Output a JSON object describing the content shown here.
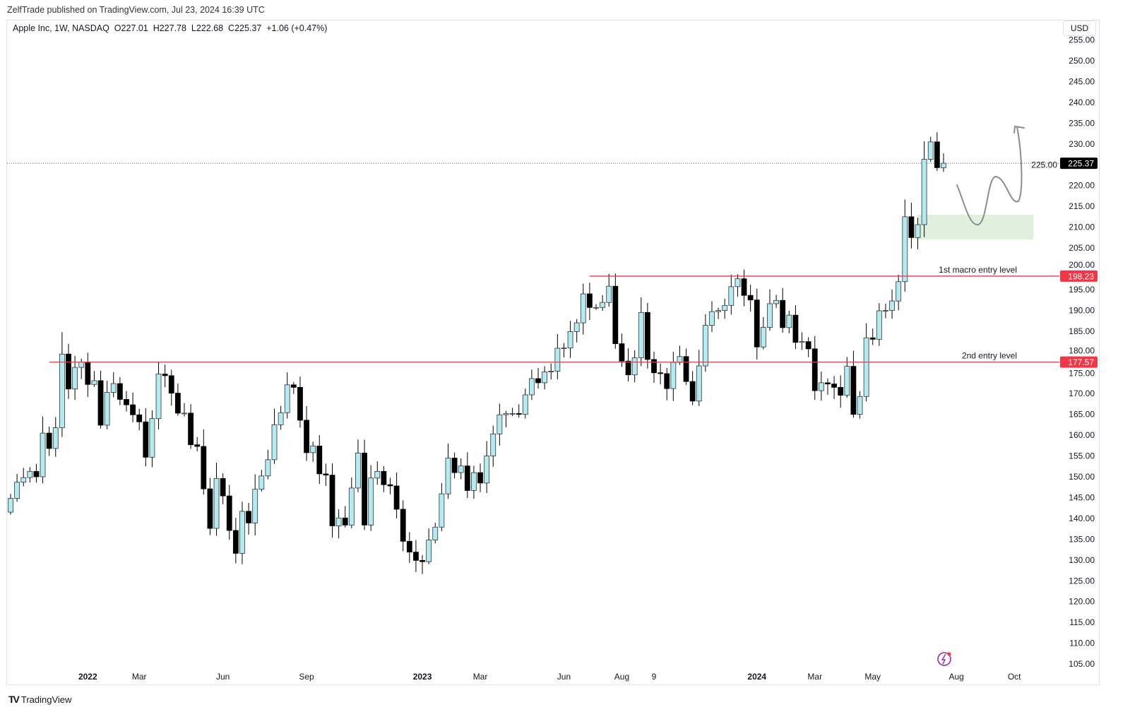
{
  "header": {
    "published": "ZelfTrade published on TradingView.com, Jul 23, 2024 16:39 UTC",
    "legend": "Apple Inc, 1W, NASDAQ  O227.01  H227.78  L222.68  C225.37  +1.06 (+0.47%)",
    "currency": "USD"
  },
  "footer": {
    "brand": "TradingView",
    "logo": "TV"
  },
  "chart_data": {
    "type": "candlestick",
    "title": "Apple Inc, 1W, NASDAQ",
    "ylim": [
      105,
      255
    ],
    "y_ticks": [
      "255.00",
      "250.00",
      "245.00",
      "240.00",
      "235.00",
      "230.00",
      "225.00",
      "220.00",
      "215.00",
      "210.00",
      "205.00",
      "200.00",
      "195.00",
      "190.00",
      "185.00",
      "180.00",
      "175.00",
      "170.00",
      "165.00",
      "160.00",
      "155.00",
      "150.00",
      "145.00",
      "140.00",
      "135.00",
      "130.00",
      "125.00",
      "120.00",
      "115.00",
      "110.00",
      "105.00"
    ],
    "x_ticks": [
      {
        "label": "2022",
        "index": 12,
        "bold": true
      },
      {
        "label": "Mar",
        "index": 20
      },
      {
        "label": "Jun",
        "index": 33
      },
      {
        "label": "Sep",
        "index": 46
      },
      {
        "label": "2023",
        "index": 64,
        "bold": true
      },
      {
        "label": "Mar",
        "index": 73
      },
      {
        "label": "Jun",
        "index": 86
      },
      {
        "label": "Aug",
        "index": 95
      },
      {
        "label": "9",
        "index": 100
      },
      {
        "label": "2024",
        "index": 116,
        "bold": true
      },
      {
        "label": "Mar",
        "index": 125
      },
      {
        "label": "May",
        "index": 134
      },
      {
        "label": "Aug",
        "index": 147
      },
      {
        "label": "Oct",
        "index": 156
      }
    ],
    "first_open": 141.5,
    "closes": [
      144.8,
      148.7,
      149.8,
      151.3,
      150.0,
      160.5,
      156.8,
      161.8,
      179.5,
      171.1,
      176.3,
      177.6,
      172.2,
      173.1,
      162.4,
      170.3,
      172.4,
      168.6,
      167.3,
      164.9,
      163.2,
      154.7,
      163.98,
      174.7,
      174.3,
      170.1,
      165.3,
      165.3,
      157.7,
      157.3,
      147.1,
      137.6,
      149.6,
      145.4,
      137.1,
      131.6,
      141.7,
      138.9,
      147.0,
      150.2,
      154.1,
      162.5,
      165.4,
      172.1,
      171.5,
      163.6,
      155.8,
      157.4,
      150.7,
      150.4,
      138.2,
      140.1,
      138.4,
      147.3,
      155.7,
      138.4,
      149.7,
      151.3,
      148.1,
      147.8,
      142.2,
      134.5,
      131.9,
      129.9,
      129.6,
      134.8,
      137.9,
      145.9,
      154.5,
      151.0,
      152.6,
      146.7,
      151.0,
      148.5,
      155.0,
      160.3,
      164.9,
      165.2,
      165.2,
      165.0,
      169.7,
      173.6,
      172.6,
      175.2,
      175.4,
      180.9,
      180.96,
      184.9,
      187.0,
      193.97,
      190.7,
      190.7,
      191.9,
      195.8,
      181.99,
      177.8,
      174.5,
      178.6,
      189.5,
      178.2,
      175.0,
      174.8,
      171.2,
      177.5,
      178.9,
      172.9,
      168.2,
      176.65,
      186.4,
      189.7,
      189.97,
      191.2,
      195.7,
      197.6,
      193.6,
      192.5,
      181.2,
      185.9,
      191.6,
      192.4,
      185.85,
      188.85,
      182.3,
      182.5,
      180.75,
      170.7,
      172.6,
      172.3,
      171.5,
      169.6,
      176.55,
      165.0,
      169.3,
      183.4,
      183.05,
      189.9,
      189.98,
      192.25,
      196.9,
      212.5,
      207.5,
      210.6,
      226.3,
      230.5,
      224.3,
      225.37
    ],
    "last_price": "225.37",
    "levels": [
      {
        "label": "1st macro entry level",
        "price": 198.23,
        "price_label": "198.23",
        "from_index": 90
      },
      {
        "label": "2nd entry level",
        "price": 177.57,
        "price_label": "177.57",
        "from_index": 6
      }
    ],
    "zone": {
      "top": 213,
      "bottom": 207,
      "from_index": 141,
      "to_index": 159
    },
    "colors": {
      "up": "#b2ebf2",
      "down": "#000000",
      "level": "#f23645",
      "zone": "#dff0dc",
      "drawing": "#8a8d96"
    }
  }
}
